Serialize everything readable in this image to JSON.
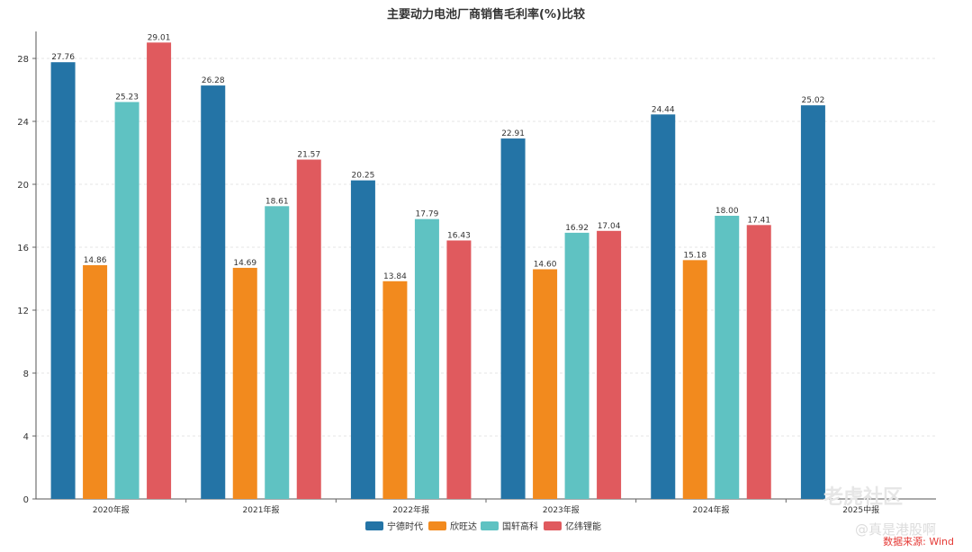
{
  "chart_data": {
    "type": "bar",
    "title": "主要动力电池厂商销售毛利率(%)比较",
    "categories": [
      "2020年报",
      "2021年报",
      "2022年报",
      "2023年报",
      "2024年报",
      "2025中报"
    ],
    "series": [
      {
        "name": "宁德时代",
        "color": "#2474a6",
        "values": [
          27.76,
          26.28,
          20.25,
          22.91,
          24.44,
          25.02
        ]
      },
      {
        "name": "欣旺达",
        "color": "#f28a1e",
        "values": [
          14.86,
          14.69,
          13.84,
          14.6,
          15.18,
          null
        ]
      },
      {
        "name": "国轩高科",
        "color": "#5fc2c2",
        "values": [
          25.23,
          18.61,
          17.79,
          16.92,
          18.0,
          null
        ]
      },
      {
        "name": "亿纬锂能",
        "color": "#e05a5e",
        "values": [
          29.01,
          21.57,
          16.43,
          17.04,
          17.41,
          null
        ]
      }
    ],
    "ylim": [
      0,
      30
    ],
    "yticks": [
      0,
      4,
      8,
      12,
      16,
      20,
      24,
      28
    ],
    "grid": true,
    "legend": "bottom"
  },
  "source": "数据来源: Wind",
  "watermark": {
    "logo": "老虎社区",
    "sub": "@真是港股啊"
  }
}
